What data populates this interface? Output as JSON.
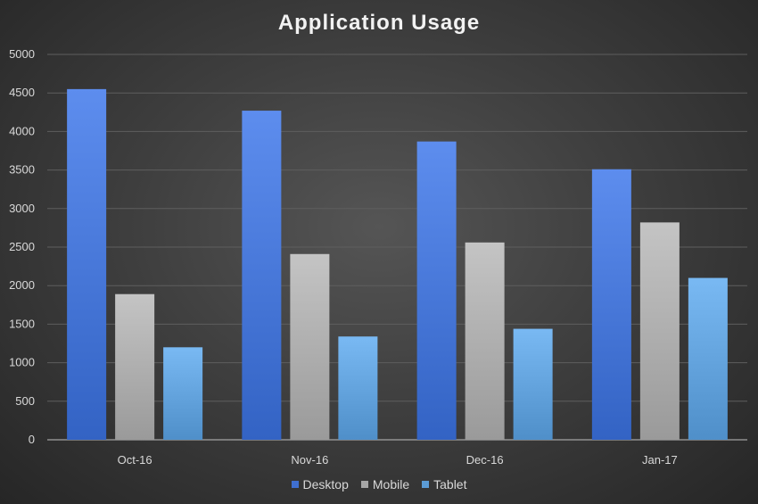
{
  "chart_data": {
    "type": "bar",
    "title": "Application Usage",
    "categories": [
      "Oct-16",
      "Nov-16",
      "Dec-16",
      "Jan-17"
    ],
    "series": [
      {
        "name": "Desktop",
        "values": [
          4550,
          4270,
          3870,
          3510
        ],
        "color": "#3f6fd0"
      },
      {
        "name": "Mobile",
        "values": [
          1890,
          2410,
          2560,
          2820
        ],
        "color": "#a6a6a6"
      },
      {
        "name": "Tablet",
        "values": [
          1200,
          1340,
          1440,
          2100
        ],
        "color": "#5b9bd5"
      }
    ],
    "ylim": [
      0,
      5000
    ],
    "yticks": [
      "0",
      "500",
      "1000",
      "1500",
      "2000",
      "2500",
      "3000",
      "3500",
      "4000",
      "4500",
      "5000"
    ],
    "xlabel": "",
    "ylabel": "",
    "grid": true,
    "legend_position": "bottom"
  }
}
